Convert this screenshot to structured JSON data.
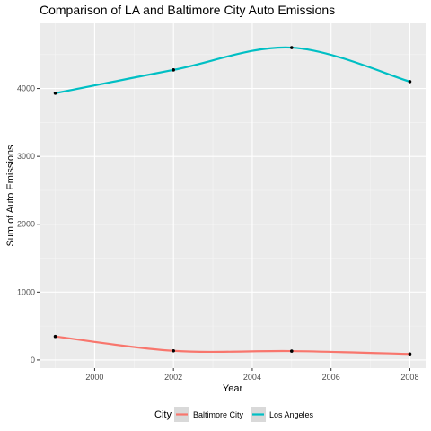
{
  "chart_data": {
    "type": "line",
    "title": "Comparison of LA and Baltimore City Auto Emissions",
    "xlabel": "Year",
    "ylabel": "Sum of Auto Emissions",
    "x": [
      1999,
      2002,
      2005,
      2008
    ],
    "xlim": [
      1998.6,
      2008.4
    ],
    "ylim": [
      -120,
      4960
    ],
    "x_ticks": [
      2000,
      2002,
      2004,
      2006,
      2008
    ],
    "y_ticks": [
      0,
      1000,
      2000,
      3000,
      4000
    ],
    "grid": true,
    "panel_background": "#ebebeb",
    "legend_title": "City",
    "legend_position": "bottom",
    "series": [
      {
        "name": "Baltimore City",
        "color": "#f8766d",
        "values": [
          346.8,
          134.3,
          130.4,
          88.3
        ]
      },
      {
        "name": "Los Angeles",
        "color": "#00bfc4",
        "values": [
          3931,
          4274,
          4602,
          4101
        ]
      }
    ]
  }
}
